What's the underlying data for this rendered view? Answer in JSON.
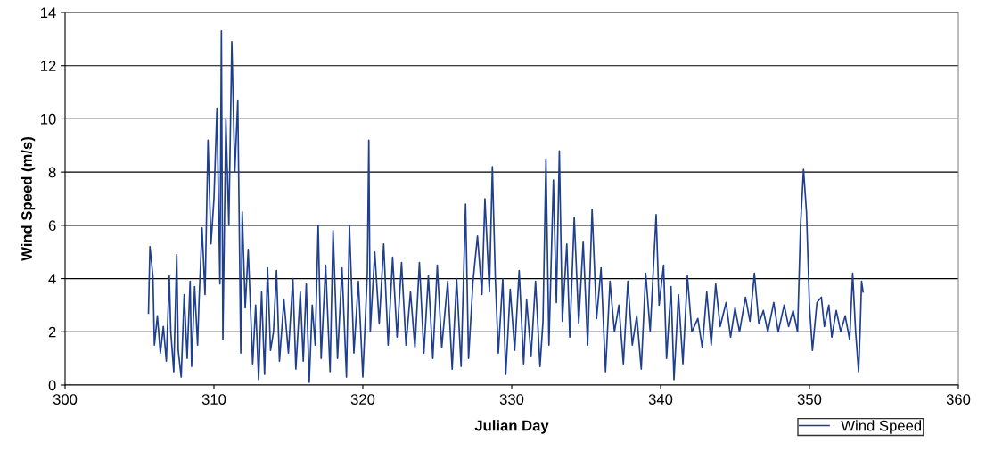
{
  "chart_data": {
    "type": "line",
    "xlabel": "Julian Day",
    "ylabel": "Wind Speed (m/s)",
    "xlim": [
      300,
      360
    ],
    "xticks": [
      300,
      310,
      320,
      330,
      340,
      350,
      360
    ],
    "ylim": [
      0,
      14
    ],
    "yticks": [
      0,
      2,
      4,
      6,
      8,
      10,
      12,
      14
    ],
    "grid": "y",
    "legend": "bottom right",
    "marker": "none",
    "line_style": "solid",
    "series": [
      {
        "name": "Wind Speed",
        "color": "#1f3f8f",
        "x": [
          305.6,
          305.7,
          305.9,
          306.0,
          306.2,
          306.4,
          306.6,
          306.8,
          307.0,
          307.1,
          307.3,
          307.5,
          307.6,
          307.8,
          308.0,
          308.2,
          308.4,
          308.5,
          308.7,
          308.9,
          309.0,
          309.2,
          309.4,
          309.6,
          309.8,
          310.0,
          310.2,
          310.4,
          310.5,
          310.6,
          310.8,
          311.0,
          311.2,
          311.4,
          311.6,
          311.8,
          311.9,
          312.1,
          312.3,
          312.6,
          312.8,
          313.0,
          313.2,
          313.4,
          313.6,
          313.8,
          314.0,
          314.2,
          314.4,
          314.7,
          315.0,
          315.3,
          315.5,
          315.8,
          316.0,
          316.2,
          316.4,
          316.6,
          316.8,
          317.0,
          317.2,
          317.5,
          317.8,
          318.0,
          318.3,
          318.6,
          318.9,
          319.1,
          319.4,
          319.7,
          320.0,
          320.3,
          320.4,
          320.5,
          320.8,
          321.1,
          321.4,
          321.7,
          322.0,
          322.3,
          322.6,
          322.9,
          323.2,
          323.5,
          323.8,
          324.1,
          324.4,
          324.7,
          325.0,
          325.3,
          325.7,
          326.0,
          326.3,
          326.6,
          326.9,
          327.1,
          327.4,
          327.7,
          328.0,
          328.2,
          328.5,
          328.7,
          328.9,
          329.1,
          329.4,
          329.6,
          329.9,
          330.2,
          330.5,
          330.8,
          331.0,
          331.3,
          331.6,
          331.9,
          332.1,
          332.3,
          332.5,
          332.8,
          333.0,
          333.2,
          333.4,
          333.7,
          333.9,
          334.2,
          334.5,
          334.8,
          335.1,
          335.4,
          335.7,
          336.0,
          336.3,
          336.6,
          336.9,
          337.2,
          337.5,
          337.8,
          338.1,
          338.4,
          338.7,
          339.0,
          339.3,
          339.7,
          339.9,
          340.2,
          340.4,
          340.7,
          340.9,
          341.2,
          341.5,
          341.8,
          342.1,
          342.5,
          342.8,
          343.1,
          343.4,
          343.7,
          344.0,
          344.4,
          344.7,
          345.0,
          345.3,
          345.7,
          346.0,
          346.3,
          346.6,
          346.9,
          347.2,
          347.6,
          347.9,
          348.3,
          348.6,
          348.9,
          349.2,
          349.4,
          349.6,
          349.8,
          350.0,
          350.2,
          350.5,
          350.8,
          351.0,
          351.3,
          351.5,
          351.8,
          352.1,
          352.4,
          352.7,
          352.9,
          353.1,
          353.3,
          353.4,
          353.5,
          353.6
        ],
        "values": [
          2.7,
          5.2,
          4.1,
          1.5,
          2.6,
          1.2,
          2.2,
          0.9,
          4.1,
          2.0,
          0.5,
          4.9,
          1.3,
          0.3,
          3.4,
          1.0,
          3.9,
          0.7,
          3.7,
          1.5,
          3.2,
          5.9,
          3.4,
          9.2,
          5.3,
          7.0,
          10.4,
          3.8,
          13.3,
          1.7,
          10.0,
          6.0,
          12.9,
          8.0,
          10.7,
          1.2,
          6.5,
          2.9,
          5.1,
          0.8,
          3.0,
          0.2,
          3.5,
          0.4,
          4.4,
          1.3,
          2.0,
          4.3,
          0.9,
          3.2,
          1.2,
          4.0,
          0.6,
          3.5,
          0.9,
          3.8,
          0.1,
          3.0,
          1.5,
          6.0,
          1.0,
          4.5,
          0.5,
          5.8,
          1.0,
          4.4,
          0.3,
          6.0,
          1.2,
          3.9,
          0.3,
          4.2,
          9.2,
          2.0,
          5.0,
          2.3,
          5.3,
          1.5,
          4.8,
          1.8,
          4.6,
          1.5,
          3.5,
          1.4,
          4.6,
          1.2,
          4.1,
          1.0,
          4.5,
          1.4,
          3.9,
          0.6,
          4.0,
          0.7,
          6.8,
          1.0,
          3.9,
          5.6,
          3.4,
          7.0,
          3.5,
          8.2,
          4.0,
          1.2,
          4.0,
          0.4,
          3.6,
          1.3,
          4.3,
          0.8,
          3.2,
          1.1,
          3.9,
          0.7,
          2.4,
          8.5,
          1.5,
          7.7,
          3.1,
          8.8,
          2.4,
          5.3,
          1.8,
          6.3,
          2.3,
          5.4,
          1.5,
          6.6,
          2.5,
          4.4,
          0.5,
          3.9,
          2.0,
          3.0,
          0.8,
          3.9,
          1.5,
          2.6,
          0.6,
          4.2,
          2.0,
          6.4,
          3.0,
          4.5,
          1.0,
          3.7,
          0.2,
          3.4,
          0.8,
          4.1,
          2.0,
          2.5,
          1.4,
          3.5,
          1.5,
          3.8,
          2.2,
          3.1,
          1.8,
          2.9,
          2.0,
          3.3,
          2.4,
          4.2,
          2.3,
          2.8,
          2.0,
          3.1,
          2.0,
          3.0,
          2.2,
          2.8,
          2.0,
          6.0,
          8.1,
          6.5,
          3.0,
          1.3,
          3.1,
          3.3,
          2.2,
          3.0,
          1.8,
          2.8,
          2.0,
          2.6,
          1.7,
          4.2,
          2.0,
          0.5,
          2.0,
          3.9,
          3.5
        ]
      }
    ]
  }
}
